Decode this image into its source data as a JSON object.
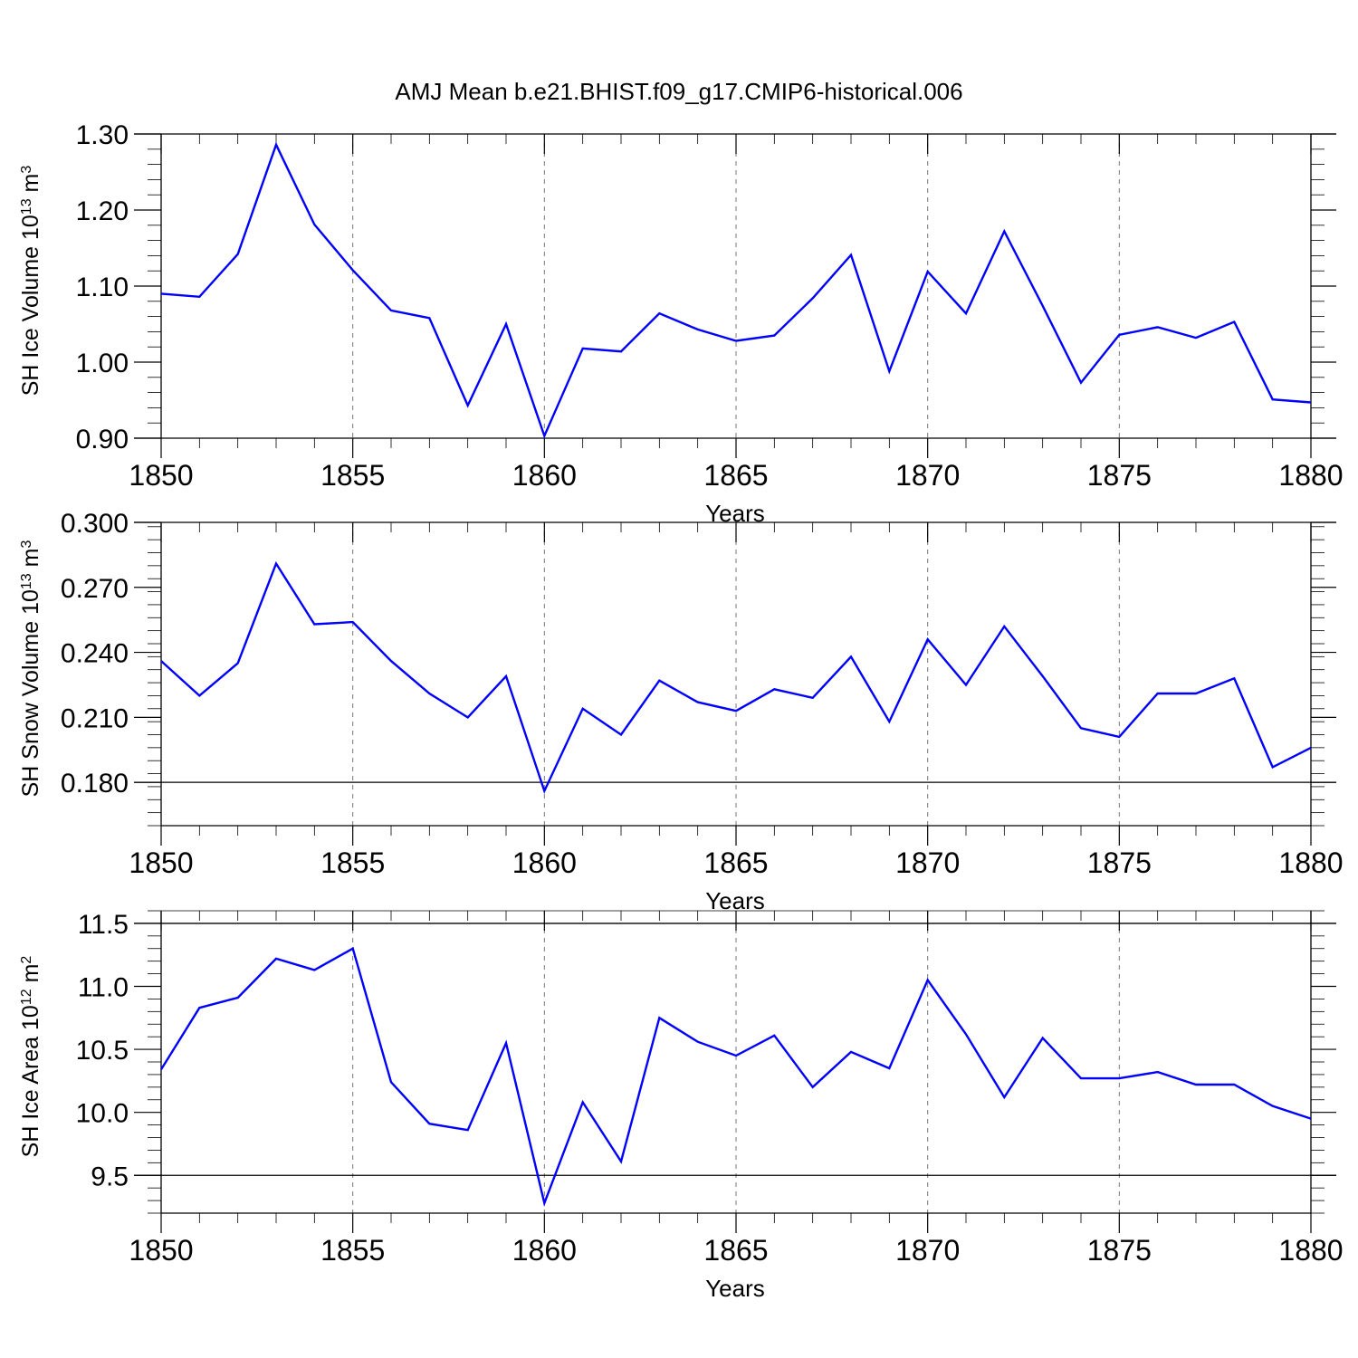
{
  "title": "AMJ Mean b.e21.BHIST.f09_g17.CMIP6-historical.006",
  "colors": {
    "series": "#0000ff",
    "grid": "#777777",
    "axis": "#000000"
  },
  "chart_data": [
    {
      "type": "line",
      "ylabel_text": "SH Ice Volume 10",
      "ylabel_exp": "13",
      "ylabel_unit": " m",
      "ylabel_unit_exp": "3",
      "xlabel": "Years",
      "xlim": [
        1850,
        1880
      ],
      "ylim": [
        0.9,
        1.3
      ],
      "yticks": [
        0.9,
        1.0,
        1.1,
        1.2,
        1.3
      ],
      "ytick_labels": [
        "0.90",
        "1.00",
        "1.10",
        "1.20",
        "1.30"
      ],
      "xticks": [
        1850,
        1855,
        1860,
        1865,
        1870,
        1875,
        1880
      ],
      "xtick_labels": [
        "1850",
        "1855",
        "1860",
        "1865",
        "1870",
        "1875",
        "1880"
      ],
      "grid": "vertical dashed at major x ticks",
      "x": [
        1850,
        1851,
        1852,
        1853,
        1854,
        1855,
        1856,
        1857,
        1858,
        1859,
        1860,
        1861,
        1862,
        1863,
        1864,
        1865,
        1866,
        1867,
        1868,
        1869,
        1870,
        1871,
        1872,
        1873,
        1874,
        1875,
        1876,
        1877,
        1878,
        1879,
        1880
      ],
      "y": [
        1.09,
        1.086,
        1.142,
        1.286,
        1.181,
        1.121,
        1.068,
        1.058,
        0.943,
        1.05,
        0.903,
        1.018,
        1.014,
        1.064,
        1.043,
        1.028,
        1.035,
        1.084,
        1.141,
        0.988,
        1.119,
        1.064,
        1.172,
        1.074,
        0.973,
        1.036,
        1.046,
        1.032,
        1.053,
        0.951,
        0.947
      ]
    },
    {
      "type": "line",
      "ylabel_text": "SH Snow Volume 10",
      "ylabel_exp": "13",
      "ylabel_unit": " m",
      "ylabel_unit_exp": "3",
      "xlabel": "Years",
      "xlim": [
        1850,
        1880
      ],
      "ylim": [
        0.16,
        0.3
      ],
      "yticks": [
        0.18,
        0.21,
        0.24,
        0.27,
        0.3
      ],
      "ytick_labels": [
        "0.180",
        "0.210",
        "0.240",
        "0.270",
        "0.300"
      ],
      "xticks": [
        1850,
        1855,
        1860,
        1865,
        1870,
        1875,
        1880
      ],
      "xtick_labels": [
        "1850",
        "1855",
        "1860",
        "1865",
        "1870",
        "1875",
        "1880"
      ],
      "grid": "vertical dashed at major x ticks",
      "x": [
        1850,
        1851,
        1852,
        1853,
        1854,
        1855,
        1856,
        1857,
        1858,
        1859,
        1860,
        1861,
        1862,
        1863,
        1864,
        1865,
        1866,
        1867,
        1868,
        1869,
        1870,
        1871,
        1872,
        1873,
        1874,
        1875,
        1876,
        1877,
        1878,
        1879,
        1880
      ],
      "y": [
        0.236,
        0.22,
        0.235,
        0.281,
        0.253,
        0.254,
        0.236,
        0.221,
        0.21,
        0.229,
        0.176,
        0.214,
        0.202,
        0.227,
        0.217,
        0.213,
        0.223,
        0.219,
        0.238,
        0.208,
        0.246,
        0.225,
        0.252,
        0.229,
        0.205,
        0.201,
        0.221,
        0.221,
        0.228,
        0.187,
        0.196
      ]
    },
    {
      "type": "line",
      "ylabel_text": "SH Ice Area 10",
      "ylabel_exp": "12",
      "ylabel_unit": " m",
      "ylabel_unit_exp": "2",
      "xlabel": "Years",
      "xlim": [
        1850,
        1880
      ],
      "ylim": [
        9.2,
        11.6
      ],
      "yticks": [
        9.5,
        10.0,
        10.5,
        11.0,
        11.5
      ],
      "ytick_labels": [
        "9.5",
        "10.0",
        "10.5",
        "11.0",
        "11.5"
      ],
      "xticks": [
        1850,
        1855,
        1860,
        1865,
        1870,
        1875,
        1880
      ],
      "xtick_labels": [
        "1850",
        "1855",
        "1860",
        "1865",
        "1870",
        "1875",
        "1880"
      ],
      "grid": "vertical dashed at major x ticks",
      "x": [
        1850,
        1851,
        1852,
        1853,
        1854,
        1855,
        1856,
        1857,
        1858,
        1859,
        1860,
        1861,
        1862,
        1863,
        1864,
        1865,
        1866,
        1867,
        1868,
        1869,
        1870,
        1871,
        1872,
        1873,
        1874,
        1875,
        1876,
        1877,
        1878,
        1879,
        1880
      ],
      "y": [
        10.34,
        10.83,
        10.91,
        11.22,
        11.13,
        11.3,
        10.24,
        9.91,
        9.86,
        10.55,
        9.28,
        10.08,
        9.61,
        10.75,
        10.56,
        10.45,
        10.61,
        10.2,
        10.48,
        10.35,
        11.05,
        10.62,
        10.12,
        10.59,
        10.27,
        10.27,
        10.32,
        10.22,
        10.22,
        10.05,
        9.95
      ]
    }
  ]
}
